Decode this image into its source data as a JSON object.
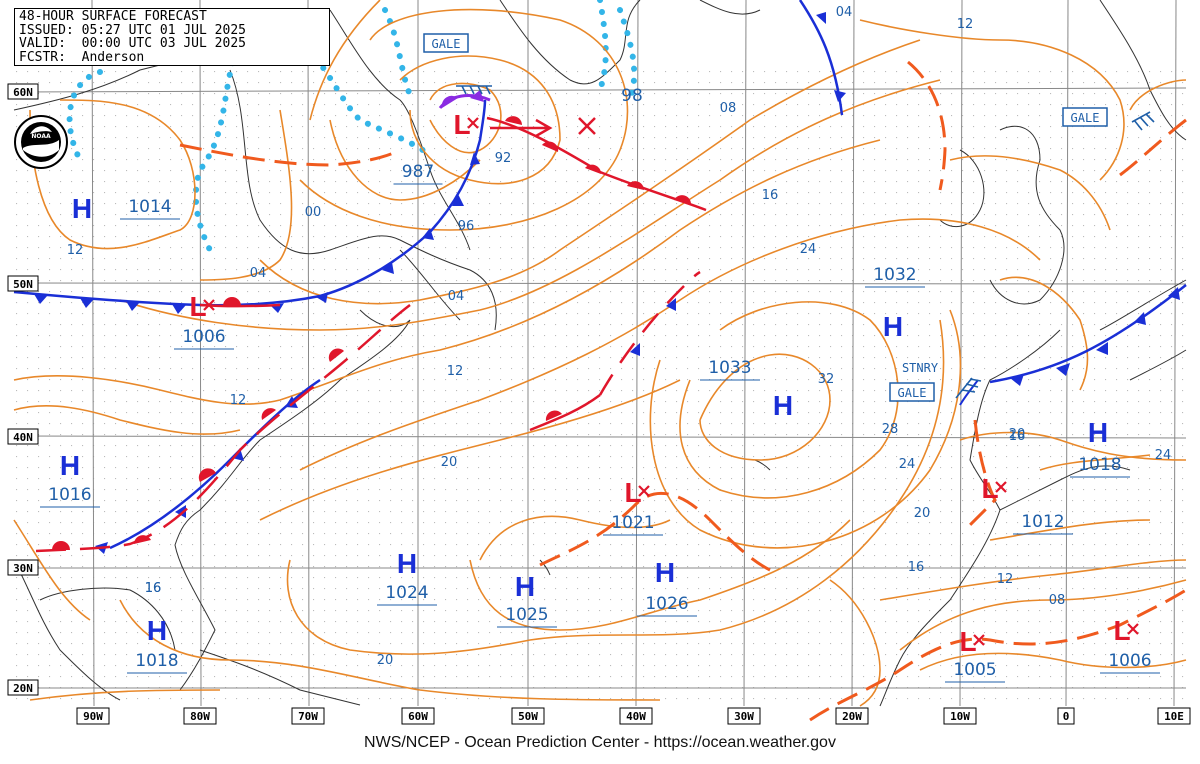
{
  "header": {
    "line1": "48-HOUR SURFACE FORECAST",
    "line2": "ISSUED: 05:27 UTC 01 JUL 2025",
    "line3": "VALID:  00:00 UTC 03 JUL 2025",
    "line4": "FCSTR:  Anderson"
  },
  "credit": "NWS/NCEP - Ocean Prediction Center - https://ocean.weather.gov",
  "logo_text": "NOAA",
  "lat_labels": [
    "60N",
    "50N",
    "40N",
    "30N",
    "20N"
  ],
  "lon_labels": [
    "90W",
    "80W",
    "70W",
    "60W",
    "50W",
    "40W",
    "30W",
    "20W",
    "10W",
    "0",
    "10E"
  ],
  "pressure_systems": [
    {
      "type": "H",
      "value": "1014"
    },
    {
      "type": "L",
      "value": "1006"
    },
    {
      "type": "H",
      "value": "1016"
    },
    {
      "type": "H",
      "value": "1018"
    },
    {
      "type": "H",
      "value": "1024"
    },
    {
      "type": "H",
      "value": "1025"
    },
    {
      "type": "L",
      "value": "1021"
    },
    {
      "type": "H",
      "value": "1026"
    },
    {
      "type": "H",
      "value": "1033"
    },
    {
      "type": "H",
      "value": "1032"
    },
    {
      "type": "L",
      "value": "987"
    },
    {
      "type": "L",
      "value": "1012"
    },
    {
      "type": "H",
      "value": "1018"
    },
    {
      "type": "L",
      "value": "1005"
    },
    {
      "type": "L",
      "value": "1006"
    }
  ],
  "isobar_labels": [
    "12",
    "04",
    "00",
    "96",
    "92",
    "04",
    "12",
    "08",
    "16",
    "24",
    "12",
    "20",
    "16",
    "20",
    "24",
    "32",
    "28",
    "24",
    "20",
    "16",
    "12",
    "08",
    "16",
    "16",
    "20",
    "12",
    "98",
    "04"
  ],
  "warnings": [
    "GALE",
    "GALE",
    "GALE"
  ],
  "stationary_label": "STNRY",
  "colors": {
    "isobar": "#e8882a",
    "cold_front": "#1a2fd6",
    "warm_front": "#e0162b",
    "trough": "#f05a1e",
    "ice": "#33b5e8",
    "label": "#1f5fa8",
    "grid": "#888888"
  }
}
